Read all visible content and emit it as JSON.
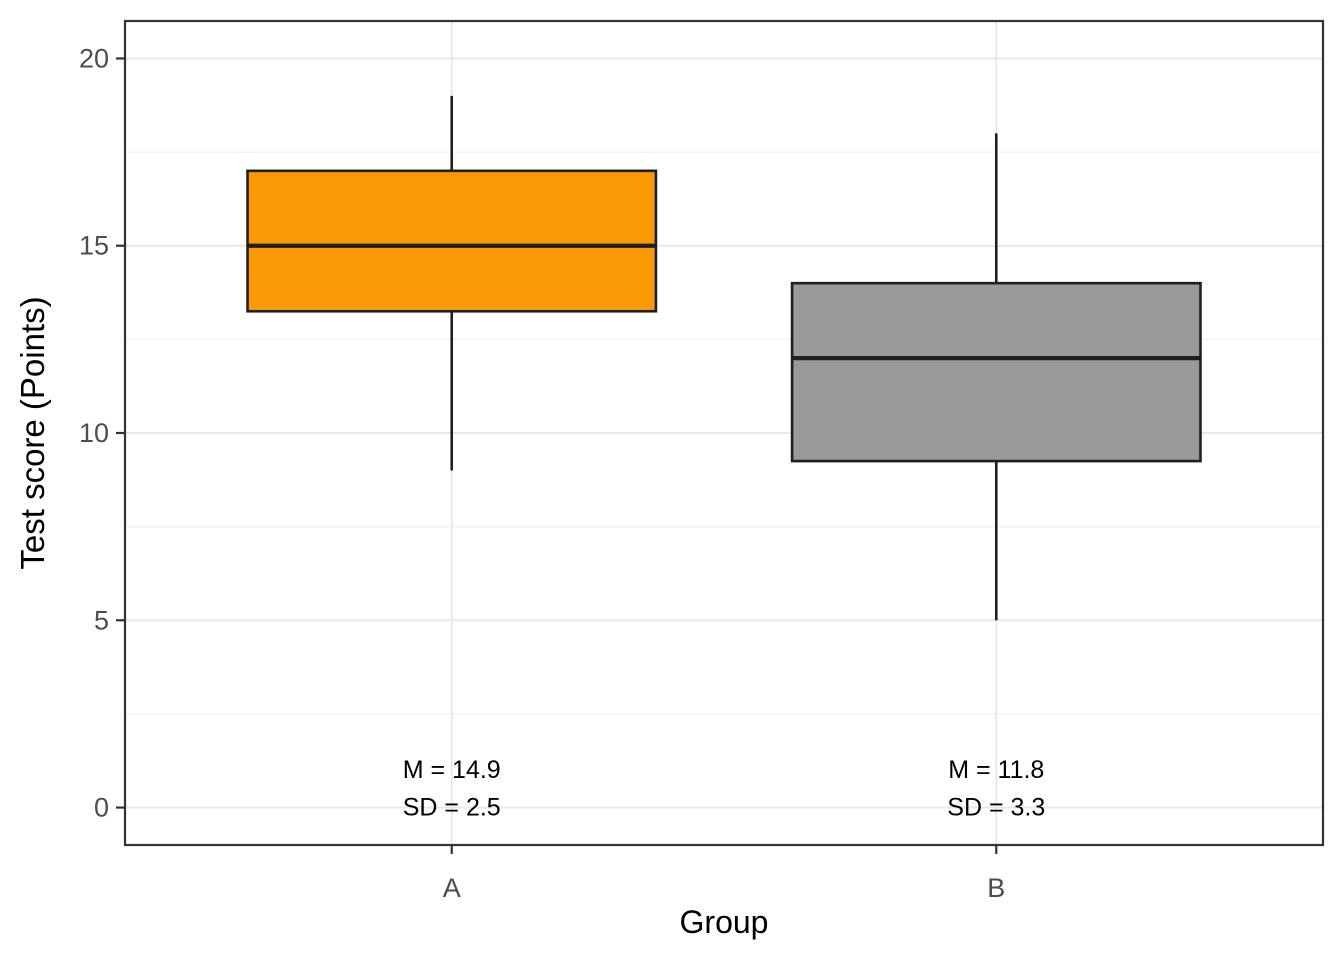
{
  "figure": {
    "background": "#FFFFFF"
  },
  "chart_data": {
    "type": "boxplot",
    "title": "",
    "xlabel": "Group",
    "ylabel": "Test score (Points)",
    "categories": [
      "A",
      "B"
    ],
    "series": [
      {
        "name": "A",
        "min": 9,
        "q1": 13.25,
        "median": 15,
        "q3": 17,
        "max": 19,
        "mean": 14.9,
        "sd": 2.5,
        "fill": "#FB9805",
        "annotation_lines": [
          "M = 14.9",
          "SD = 2.5"
        ]
      },
      {
        "name": "B",
        "min": 5,
        "q1": 9.25,
        "median": 12,
        "q3": 14,
        "max": 18,
        "mean": 11.8,
        "sd": 3.3,
        "fill": "#999999",
        "annotation_lines": [
          "M = 11.8",
          "SD = 3.3"
        ]
      }
    ],
    "box_width": 0.75,
    "x_axis": {
      "range": [
        0.4,
        2.6
      ],
      "positions": [
        1,
        2
      ]
    },
    "y_axis": {
      "range": [
        -1,
        21
      ],
      "major_ticks": [
        0,
        5,
        10,
        15,
        20
      ],
      "tick_labels": [
        "0",
        "5",
        "10",
        "15",
        "20"
      ],
      "minor_ticks": [
        2.5,
        7.5,
        12.5,
        17.5
      ]
    },
    "annotation_y": [
      1,
      0
    ],
    "grid": true,
    "legend": "none",
    "colors": {
      "box_outline": "#1F1F1F",
      "median_line": "#1F1F1F",
      "panel_border": "#333333",
      "panel_background": "#FFFFFF",
      "grid_major": "#E8E8E8",
      "grid_minor": "#F2F2F2",
      "tick_mark": "#333333",
      "tick_label": "#4D4D4D",
      "axis_title": "#000000",
      "annotation_text": "#000000"
    }
  }
}
